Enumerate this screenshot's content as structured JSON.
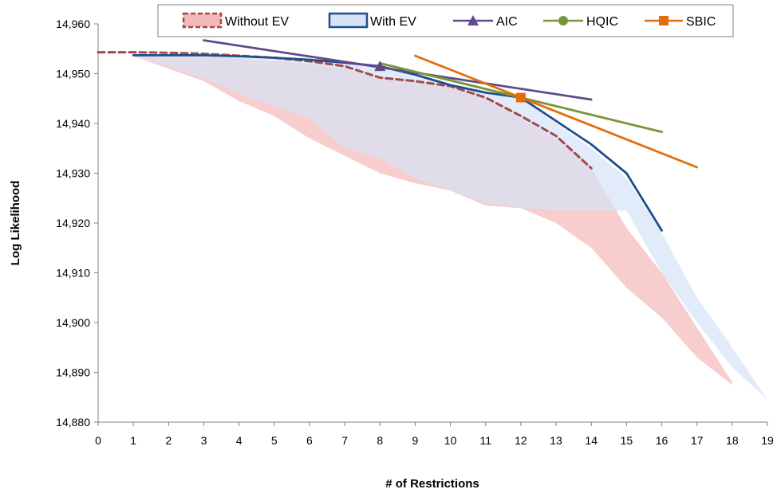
{
  "chart_data": {
    "type": "line",
    "xlabel": "# of Restrictions",
    "ylabel": "Log Likelihood",
    "xlim": [
      0,
      19
    ],
    "ylim": [
      14880,
      14960
    ],
    "x_ticks": [
      0,
      1,
      2,
      3,
      4,
      5,
      6,
      7,
      8,
      9,
      10,
      11,
      12,
      13,
      14,
      15,
      16,
      17,
      18,
      19
    ],
    "y_ticks": [
      14880,
      14890,
      14900,
      14910,
      14920,
      14930,
      14940,
      14950,
      14960
    ],
    "y_tick_labels": [
      "14,880",
      "14,890",
      "14,900",
      "14,910",
      "14,920",
      "14,930",
      "14,940",
      "14,950",
      "14,960"
    ],
    "grid": false,
    "legend": "top",
    "bands": [
      {
        "name": "Without EV",
        "color": "#f3b8b8",
        "upper": [
          [
            1,
            14954
          ],
          [
            2,
            14953.5
          ],
          [
            3,
            14953.5
          ],
          [
            4,
            14953
          ],
          [
            5,
            14952.5
          ],
          [
            6,
            14952
          ],
          [
            7,
            14951
          ],
          [
            8,
            14949
          ],
          [
            9,
            14948.5
          ],
          [
            10,
            14947.5
          ],
          [
            11,
            14945
          ],
          [
            12,
            14941
          ],
          [
            13,
            14937
          ],
          [
            14,
            14931
          ],
          [
            15,
            14919
          ],
          [
            16,
            14910
          ],
          [
            17,
            14899
          ],
          [
            18,
            14888
          ]
        ],
        "lower": [
          [
            1,
            14953.5
          ],
          [
            2,
            14951
          ],
          [
            3,
            14948.5
          ],
          [
            4,
            14944.5
          ],
          [
            5,
            14941.5
          ],
          [
            6,
            14937
          ],
          [
            7,
            14933.5
          ],
          [
            8,
            14930
          ],
          [
            9,
            14928
          ],
          [
            10,
            14926.5
          ],
          [
            11,
            14923.5
          ],
          [
            12,
            14923
          ],
          [
            13,
            14920
          ],
          [
            14,
            14915
          ],
          [
            15,
            14907
          ],
          [
            16,
            14901
          ],
          [
            17,
            14893
          ],
          [
            18,
            14887.5
          ]
        ]
      },
      {
        "name": "With EV",
        "color": "#d6e2f7",
        "upper": [
          [
            1,
            14953.5
          ],
          [
            2,
            14953.5
          ],
          [
            3,
            14953.5
          ],
          [
            4,
            14953.5
          ],
          [
            5,
            14953
          ],
          [
            6,
            14953
          ],
          [
            7,
            14952.5
          ],
          [
            8,
            14951.5
          ],
          [
            9,
            14950
          ],
          [
            10,
            14948
          ],
          [
            11,
            14946
          ],
          [
            12,
            14945
          ],
          [
            13,
            14940
          ],
          [
            14,
            14935
          ],
          [
            15,
            14929
          ],
          [
            16,
            14918
          ],
          [
            17,
            14905
          ],
          [
            18,
            14895
          ],
          [
            19,
            14884.5
          ]
        ],
        "lower": [
          [
            1,
            14953.5
          ],
          [
            2,
            14951.5
          ],
          [
            3,
            14949
          ],
          [
            4,
            14946
          ],
          [
            5,
            14943.5
          ],
          [
            6,
            14941
          ],
          [
            7,
            14935
          ],
          [
            8,
            14933
          ],
          [
            9,
            14929
          ],
          [
            10,
            14926.5
          ],
          [
            11,
            14924
          ],
          [
            12,
            14923
          ],
          [
            13,
            14922.5
          ],
          [
            14,
            14922.5
          ],
          [
            15,
            14922.5
          ],
          [
            16,
            14910
          ],
          [
            17,
            14900
          ],
          [
            18,
            14891
          ],
          [
            19,
            14884.5
          ]
        ]
      }
    ],
    "series": [
      {
        "name": "Without EV",
        "color": "#a44a4a",
        "style": "dashed",
        "points": [
          [
            0,
            14954.3
          ],
          [
            1,
            14954.3
          ],
          [
            2,
            14954.2
          ],
          [
            3,
            14954
          ],
          [
            4,
            14953.6
          ],
          [
            5,
            14953.2
          ],
          [
            6,
            14952.5
          ],
          [
            7,
            14951.5
          ],
          [
            8,
            14949.2
          ],
          [
            9,
            14948.5
          ],
          [
            10,
            14947.5
          ],
          [
            11,
            14945.2
          ],
          [
            12,
            14941.5
          ],
          [
            13,
            14937.5
          ],
          [
            14,
            14931
          ]
        ]
      },
      {
        "name": "With EV",
        "color": "#1f4e8c",
        "style": "solid",
        "points": [
          [
            1,
            14953.7
          ],
          [
            2,
            14953.7
          ],
          [
            3,
            14953.7
          ],
          [
            4,
            14953.5
          ],
          [
            5,
            14953.2
          ],
          [
            6,
            14952.8
          ],
          [
            7,
            14952.2
          ],
          [
            8,
            14951.5
          ],
          [
            9,
            14949.8
          ],
          [
            10,
            14947.7
          ],
          [
            11,
            14946.2
          ],
          [
            12,
            14945.2
          ],
          [
            13,
            14940.5
          ],
          [
            14,
            14935.8
          ],
          [
            15,
            14930
          ],
          [
            16,
            14918.5
          ]
        ]
      },
      {
        "name": "AIC",
        "color": "#604a8a",
        "style": "solid",
        "marker": "triangle",
        "marker_at": [
          8,
          14951.5
        ],
        "points": [
          [
            3,
            14956.7
          ],
          [
            14,
            14944.8
          ]
        ]
      },
      {
        "name": "HQIC",
        "color": "#77963b",
        "style": "solid",
        "marker": "circle",
        "marker_at": [
          12,
          14945.2
        ],
        "points": [
          [
            8,
            14952.1
          ],
          [
            16,
            14938.3
          ]
        ]
      },
      {
        "name": "SBIC",
        "color": "#e46c0a",
        "style": "solid",
        "marker": "square",
        "marker_at": [
          12,
          14945.2
        ],
        "points": [
          [
            9,
            14953.6
          ],
          [
            17,
            14931.2
          ]
        ]
      }
    ]
  }
}
